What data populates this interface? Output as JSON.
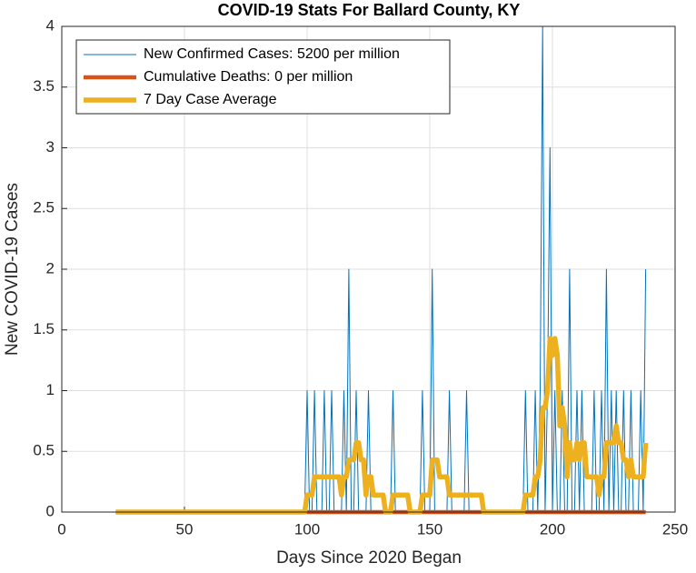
{
  "chart_data": {
    "type": "line",
    "title": "COVID-19 Stats For Ballard County, KY",
    "x_label": "Days Since 2020 Began",
    "y_label": "New COVID-19 Cases",
    "xlim": [
      0,
      250
    ],
    "xticks": [
      0,
      50,
      100,
      150,
      200,
      250
    ],
    "ylim": [
      0,
      4
    ],
    "yticks": [
      0,
      0.5,
      1,
      1.5,
      2,
      2.5,
      3,
      3.5,
      4
    ],
    "grid": true,
    "legend": "upper-left",
    "x": [
      22,
      23,
      24,
      25,
      26,
      27,
      28,
      29,
      30,
      31,
      32,
      33,
      34,
      35,
      36,
      37,
      38,
      39,
      40,
      41,
      42,
      43,
      44,
      45,
      46,
      47,
      48,
      49,
      50,
      51,
      52,
      53,
      54,
      55,
      56,
      57,
      58,
      59,
      60,
      61,
      62,
      63,
      64,
      65,
      66,
      67,
      68,
      69,
      70,
      71,
      72,
      73,
      74,
      75,
      76,
      77,
      78,
      79,
      80,
      81,
      82,
      83,
      84,
      85,
      86,
      87,
      88,
      89,
      90,
      91,
      92,
      93,
      94,
      95,
      96,
      97,
      98,
      99,
      100,
      101,
      102,
      103,
      104,
      105,
      106,
      107,
      108,
      109,
      110,
      111,
      112,
      113,
      114,
      115,
      116,
      117,
      118,
      119,
      120,
      121,
      122,
      123,
      124,
      125,
      126,
      127,
      128,
      129,
      130,
      131,
      132,
      133,
      134,
      135,
      136,
      137,
      138,
      139,
      140,
      141,
      142,
      143,
      144,
      145,
      146,
      147,
      148,
      149,
      150,
      151,
      152,
      153,
      154,
      155,
      156,
      157,
      158,
      159,
      160,
      161,
      162,
      163,
      164,
      165,
      166,
      167,
      168,
      169,
      170,
      171,
      172,
      173,
      174,
      175,
      176,
      177,
      178,
      179,
      180,
      181,
      182,
      183,
      184,
      185,
      186,
      187,
      188,
      189,
      190,
      191,
      192,
      193,
      194,
      195,
      196,
      197,
      198,
      199,
      200,
      201,
      202,
      203,
      204,
      205,
      206,
      207,
      208,
      209,
      210,
      211,
      212,
      213,
      214,
      215,
      216,
      217,
      218,
      219,
      220,
      221,
      222,
      223,
      224,
      225,
      226,
      227,
      228,
      229,
      230,
      231,
      232,
      233,
      234,
      235,
      236,
      237,
      238
    ],
    "series": [
      {
        "name": "New Confirmed Cases: 5200 per million",
        "color": "#0072BD",
        "width": 1,
        "values": [
          0,
          0,
          0,
          0,
          0,
          0,
          0,
          0,
          0,
          0,
          0,
          0,
          0,
          0,
          0,
          0,
          0,
          0,
          0,
          0,
          0,
          0,
          0,
          0,
          0,
          0,
          0,
          0,
          0,
          0,
          0,
          0,
          0,
          0,
          0,
          0,
          0,
          0,
          0,
          0,
          0,
          0,
          0,
          0,
          0,
          0,
          0,
          0,
          0,
          0,
          0,
          0,
          0,
          0,
          0,
          0,
          0,
          0,
          0,
          0,
          0,
          0,
          0,
          0,
          0,
          0,
          0,
          0,
          0,
          0,
          0,
          0,
          0,
          0,
          0,
          0,
          0,
          0,
          1,
          0,
          0,
          1,
          0,
          0,
          0,
          1,
          0,
          0,
          1,
          0,
          0,
          0,
          0,
          1,
          0,
          2,
          0,
          0,
          1,
          0,
          0,
          0,
          0,
          1,
          0,
          0,
          0,
          0,
          0,
          0,
          0,
          0,
          0,
          1,
          0,
          0,
          0,
          0,
          0,
          0,
          0,
          0,
          0,
          0,
          0,
          1,
          0,
          0,
          0,
          2,
          0,
          0,
          0,
          0,
          0,
          0,
          1,
          0,
          0,
          0,
          0,
          0,
          0,
          1,
          0,
          0,
          0,
          0,
          0,
          0,
          0,
          0,
          0,
          0,
          0,
          0,
          0,
          0,
          0,
          0,
          0,
          0,
          0,
          0,
          0,
          0,
          0,
          1,
          0,
          0,
          0,
          1,
          0,
          1,
          4,
          0,
          1,
          3,
          0,
          1,
          0,
          0,
          1,
          0,
          0,
          2,
          0,
          0,
          1,
          0,
          1,
          0,
          0,
          0,
          0,
          1,
          0,
          0,
          1,
          0,
          2,
          0,
          1,
          0,
          1,
          0,
          0,
          1,
          0,
          0,
          1,
          0,
          0,
          0,
          1,
          0,
          2
        ]
      },
      {
        "name": "Cumulative Deaths: 0 per million",
        "color": "#D95319",
        "width": 4.5,
        "values": [
          0,
          0,
          0,
          0,
          0,
          0,
          0,
          0,
          0,
          0,
          0,
          0,
          0,
          0,
          0,
          0,
          0,
          0,
          0,
          0,
          0,
          0,
          0,
          0,
          0,
          0,
          0,
          0,
          0,
          0,
          0,
          0,
          0,
          0,
          0,
          0,
          0,
          0,
          0,
          0,
          0,
          0,
          0,
          0,
          0,
          0,
          0,
          0,
          0,
          0,
          0,
          0,
          0,
          0,
          0,
          0,
          0,
          0,
          0,
          0,
          0,
          0,
          0,
          0,
          0,
          0,
          0,
          0,
          0,
          0,
          0,
          0,
          0,
          0,
          0,
          0,
          0,
          0,
          0,
          0,
          0,
          0,
          0,
          0,
          0,
          0,
          0,
          0,
          0,
          0,
          0,
          0,
          0,
          0,
          0,
          0,
          0,
          0,
          0,
          0,
          0,
          0,
          0,
          0,
          0,
          0,
          0,
          0,
          0,
          0,
          0,
          0,
          0,
          0,
          0,
          0,
          0,
          0,
          0,
          0,
          0,
          0,
          0,
          0,
          0,
          0,
          0,
          0,
          0,
          0,
          0,
          0,
          0,
          0,
          0,
          0,
          0,
          0,
          0,
          0,
          0,
          0,
          0,
          0,
          0,
          0,
          0,
          0,
          0,
          0,
          0,
          0,
          0,
          0,
          0,
          0,
          0,
          0,
          0,
          0,
          0,
          0,
          0,
          0,
          0,
          0,
          0,
          0,
          0,
          0,
          0,
          0,
          0,
          0,
          0,
          0,
          0,
          0,
          0,
          0,
          0,
          0,
          0,
          0,
          0,
          0,
          0,
          0,
          0,
          0,
          0,
          0,
          0,
          0,
          0,
          0,
          0,
          0,
          0,
          0,
          0,
          0,
          0,
          0,
          0,
          0,
          0,
          0,
          0,
          0,
          0,
          0,
          0,
          0,
          0,
          0,
          0
        ]
      },
      {
        "name": "7 Day Case Average",
        "color": "#EDB120",
        "width": 5.5,
        "values": [
          0,
          0,
          0,
          0,
          0,
          0,
          0,
          0,
          0,
          0,
          0,
          0,
          0,
          0,
          0,
          0,
          0,
          0,
          0,
          0,
          0,
          0,
          0,
          0,
          0,
          0,
          0,
          0,
          0,
          0,
          0,
          0,
          0,
          0,
          0,
          0,
          0,
          0,
          0,
          0,
          0,
          0,
          0,
          0,
          0,
          0,
          0,
          0,
          0,
          0,
          0,
          0,
          0,
          0,
          0,
          0,
          0,
          0,
          0,
          0,
          0,
          0,
          0,
          0,
          0,
          0,
          0,
          0,
          0,
          0,
          0,
          0,
          0,
          0,
          0,
          0,
          0,
          0,
          0.14,
          0.14,
          0.14,
          0.29,
          0.29,
          0.29,
          0.29,
          0.29,
          0.29,
          0.29,
          0.29,
          0.29,
          0.29,
          0.29,
          0.14,
          0.29,
          0.29,
          0.43,
          0.43,
          0.43,
          0.57,
          0.57,
          0.43,
          0.43,
          0.14,
          0.29,
          0.29,
          0.14,
          0.14,
          0.14,
          0.14,
          0.14,
          0,
          0,
          0,
          0.14,
          0.14,
          0.14,
          0.14,
          0.14,
          0.14,
          0.14,
          0,
          0,
          0,
          0,
          0,
          0.14,
          0.14,
          0.14,
          0.14,
          0.43,
          0.43,
          0.43,
          0.29,
          0.29,
          0.29,
          0.29,
          0.14,
          0.14,
          0.14,
          0.14,
          0.14,
          0.14,
          0.14,
          0.14,
          0.14,
          0.14,
          0.14,
          0.14,
          0.14,
          0.14,
          0,
          0,
          0,
          0,
          0,
          0,
          0,
          0,
          0,
          0,
          0,
          0,
          0,
          0,
          0,
          0,
          0,
          0.14,
          0.14,
          0.14,
          0.14,
          0.29,
          0.29,
          0.43,
          0.86,
          0.86,
          1,
          1.43,
          1.29,
          1.43,
          1.29,
          0.71,
          0.86,
          0.71,
          0.29,
          0.57,
          0.43,
          0.43,
          0.57,
          0.43,
          0.57,
          0.57,
          0.29,
          0.29,
          0.29,
          0.29,
          0.29,
          0.14,
          0.29,
          0.29,
          0.57,
          0.57,
          0.57,
          0.57,
          0.71,
          0.57,
          0.57,
          0.43,
          0.43,
          0.29,
          0.43,
          0.29,
          0.29,
          0.29,
          0.29,
          0.29,
          0.57
        ]
      }
    ]
  }
}
